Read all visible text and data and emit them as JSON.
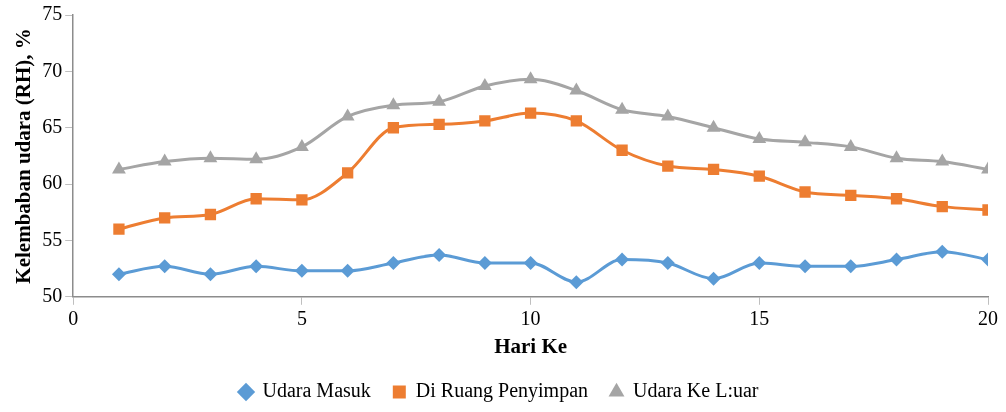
{
  "chart_data": {
    "type": "line",
    "xlabel": "Hari Ke",
    "ylabel": "Kelembaban udara (RH), %",
    "x": [
      1,
      2,
      3,
      4,
      5,
      6,
      7,
      8,
      9,
      10,
      11,
      12,
      13,
      14,
      15,
      16,
      17,
      18,
      19,
      20
    ],
    "xlim": [
      0,
      20
    ],
    "xticks": [
      0,
      5,
      10,
      15,
      20
    ],
    "ylim": [
      50,
      75
    ],
    "yticks": [
      50,
      55,
      60,
      65,
      70,
      75
    ],
    "grid": false,
    "legend": "bottom",
    "series": [
      {
        "name": "Udara Masuk",
        "color": "#5b9bd5",
        "marker": "diamond",
        "values": [
          52,
          52.7,
          52,
          52.7,
          52.3,
          52.3,
          53,
          53.7,
          53,
          53,
          51.3,
          53.3,
          53,
          51.6,
          53,
          52.7,
          52.7,
          53.3,
          54,
          53.3
        ]
      },
      {
        "name": "Di Ruang Penyimpan",
        "color": "#ed7d31",
        "marker": "square",
        "values": [
          56,
          57,
          57.3,
          58.7,
          58.6,
          61,
          65,
          65.3,
          65.6,
          66.3,
          65.6,
          63,
          61.6,
          61.3,
          60.7,
          59.3,
          59,
          58.7,
          58,
          57.7
        ]
      },
      {
        "name": "Udara Ke L:uar",
        "color": "#a5a5a5",
        "marker": "triangle",
        "values": [
          61.3,
          62,
          62.3,
          62.2,
          63.3,
          66,
          67,
          67.3,
          68.7,
          69.3,
          68.3,
          66.6,
          66,
          65,
          64,
          63.7,
          63.3,
          62.3,
          62,
          61.3
        ]
      }
    ]
  }
}
